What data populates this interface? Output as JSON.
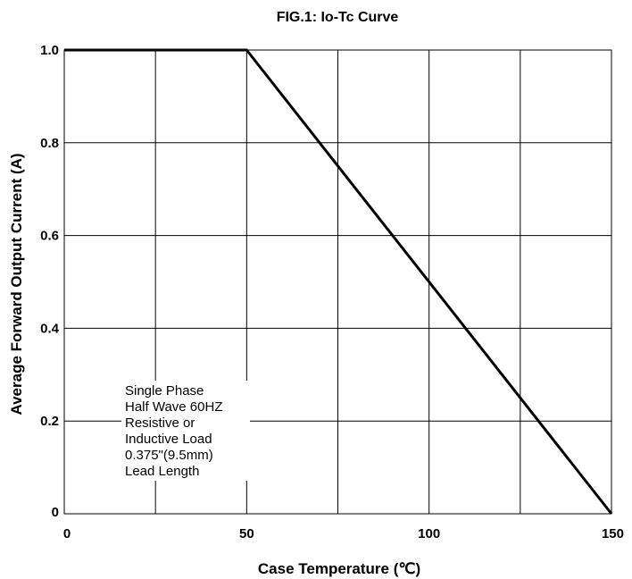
{
  "chart_data": {
    "type": "line",
    "title": "FIG.1: Io-Tc Curve",
    "xlabel": "Case Temperature (℃)",
    "ylabel": "Average Forward Output Current (A)",
    "xlim": [
      0,
      150
    ],
    "ylim": [
      0,
      1.0
    ],
    "x_ticks": [
      "0",
      "50",
      "100",
      "150"
    ],
    "y_ticks": [
      "0",
      "0.2",
      "0.4",
      "0.6",
      "0.8",
      "1.0"
    ],
    "grid": true,
    "series": [
      {
        "x": [
          0,
          50,
          150
        ],
        "y": [
          1.0,
          1.0,
          0
        ]
      }
    ],
    "annotation": [
      "Single Phase",
      "Half Wave 60HZ",
      "Resistive or",
      "Inductive Load",
      "0.375\"(9.5mm)",
      "Lead Length"
    ]
  }
}
